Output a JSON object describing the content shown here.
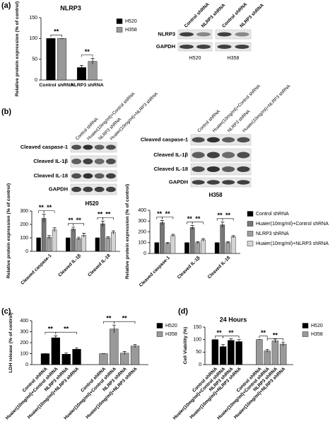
{
  "panels": [
    "(a)",
    "(b)",
    "(c)",
    "(d)"
  ],
  "blots": [
    {
      "columns": [
        "Control shRNA",
        "NLRP3 shRNA",
        "Control shRNA",
        "NLRP3 shRNA"
      ],
      "rows": [
        "NLRP3",
        "GAPDH"
      ],
      "cell_lines": [
        "H520",
        "H358"
      ]
    },
    {
      "title": "H520",
      "columns": [
        "Control shRNA",
        "Huaier(10mg/ml)+Control shRNA",
        "NLRP3 shRNA",
        "Huaier(10mg/ml)+NLRP3 shRNA"
      ],
      "rows": [
        "Cleaved caspase-1",
        "Cleaved IL-1β",
        "Cleaved IL-18",
        "GAPDH"
      ]
    },
    {
      "title": "H358",
      "columns": [
        "Control shRNA",
        "Huaier(10mg/ml)+Control shRNA",
        "NLRP3 shRNA",
        "Huaier(10mg/ml)+NLRP3 shRNA"
      ],
      "rows": [
        "Cleaved caspase-1",
        "Cleaved IL-1β",
        "Cleaved IL-18",
        "GAPDH"
      ]
    }
  ],
  "chart_data": [
    {
      "type": "bar",
      "title": "NLRP3",
      "y_label": "Relative protein expression (% of control)",
      "categories": [
        "Control shRNA",
        "NLRP3 shRNA"
      ],
      "series": [
        {
          "name": "H520",
          "color": "#000000",
          "values": [
            100,
            30
          ],
          "errors": [
            0,
            5
          ]
        },
        {
          "name": "H358",
          "color": "#999999",
          "values": [
            100,
            45
          ],
          "errors": [
            0,
            7
          ]
        }
      ],
      "ylim": [
        0,
        150
      ],
      "yticks": [
        0,
        50,
        100,
        150
      ],
      "annotations": [
        "**",
        "**"
      ]
    },
    {
      "type": "bar",
      "y_label": "Relative protein expression (% of control)",
      "categories": [
        "Cleaved caspase-1",
        "Cleaved IL-1β",
        "Cleaved IL-18"
      ],
      "series": [
        {
          "color": "#000000",
          "values": [
            100,
            100,
            100
          ],
          "errors": [
            0,
            0,
            0
          ]
        },
        {
          "color": "#777777",
          "values": [
            245,
            165,
            205
          ],
          "errors": [
            30,
            15,
            20
          ]
        },
        {
          "color": "#9e9e9e",
          "values": [
            105,
            95,
            100
          ],
          "errors": [
            12,
            10,
            8
          ]
        },
        {
          "color": "#d4d4d4",
          "values": [
            160,
            120,
            140
          ],
          "errors": [
            15,
            15,
            12
          ]
        }
      ],
      "ylim": [
        0,
        300
      ],
      "yticks": [
        0,
        100,
        200,
        300
      ],
      "annotations": [
        "**",
        "**",
        "**",
        "**",
        "**",
        "**"
      ]
    },
    {
      "type": "bar",
      "y_label": "Relative protein expression (% of control)",
      "categories": [
        "Cleaved caspase-1",
        "Cleaved IL-1β",
        "Cleaved IL-18"
      ],
      "series": [
        {
          "name": "Control shRNA",
          "color": "#000000",
          "values": [
            100,
            100,
            100
          ],
          "errors": [
            0,
            0,
            0
          ]
        },
        {
          "name": "Huaier(10mg/ml)+Control shRNA",
          "color": "#777777",
          "values": [
            285,
            240,
            265
          ],
          "errors": [
            20,
            18,
            25
          ]
        },
        {
          "name": "NLRP3 shRNA",
          "color": "#9e9e9e",
          "values": [
            95,
            100,
            100
          ],
          "errors": [
            8,
            10,
            8
          ]
        },
        {
          "name": "Huaier(10mg/ml)+NLRP3 shRNA",
          "color": "#d4d4d4",
          "values": [
            165,
            125,
            155
          ],
          "errors": [
            12,
            12,
            10
          ]
        }
      ],
      "ylim": [
        0,
        400
      ],
      "yticks": [
        0,
        100,
        200,
        300,
        400
      ],
      "annotations": [
        "**",
        "**",
        "**",
        "**",
        "**",
        "**"
      ]
    },
    {
      "type": "bar",
      "y_label": "LDH release (% of control)",
      "categories": [
        "Control shRNA",
        "Huaier(10mg/ml)+Control shRNA",
        "NLRP3 shRNA",
        "Huaier(10mg/ml)+NLRP3 shRNA"
      ],
      "series": [
        {
          "name": "H520",
          "color": "#000000",
          "values": [
            100,
            245,
            95,
            140
          ],
          "errors": [
            0,
            18,
            12,
            12
          ]
        },
        {
          "name": "H358",
          "color": "#999999",
          "values": [
            100,
            325,
            105,
            170
          ],
          "errors": [
            0,
            35,
            15,
            15
          ]
        }
      ],
      "ylim": [
        0,
        400
      ],
      "yticks": [
        0,
        100,
        200,
        300,
        400
      ],
      "annotations": [
        "**",
        "**",
        "**",
        "**"
      ]
    },
    {
      "type": "bar",
      "title": "24 Hours",
      "y_label": "Cell Viability (%)",
      "categories": [
        "Control shRNA",
        "Huaier(10mg/ml)+Control shRNA",
        "NLRP3 shRNA",
        "Huaier(10mg/ml)+NLRP3 shRNA"
      ],
      "series": [
        {
          "name": "H520",
          "color": "#000000",
          "values": [
            100,
            72,
            97,
            92
          ],
          "errors": [
            0,
            8,
            6,
            8
          ]
        },
        {
          "name": "H358",
          "color": "#999999",
          "values": [
            100,
            55,
            95,
            82
          ],
          "errors": [
            0,
            6,
            7,
            8
          ]
        }
      ],
      "ylim": [
        0,
        150
      ],
      "yticks": [
        0,
        50,
        100,
        150
      ],
      "annotations": [
        "**",
        "**",
        "**",
        "**"
      ]
    }
  ]
}
